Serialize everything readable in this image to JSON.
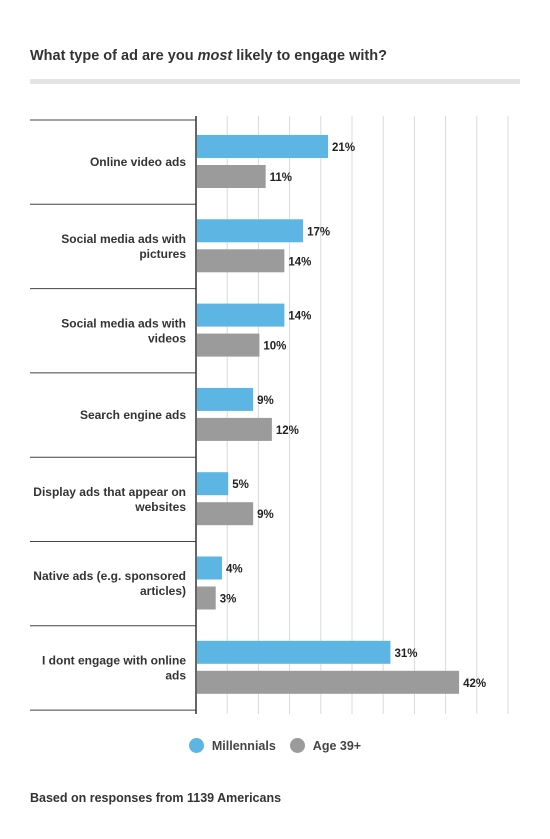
{
  "title": {
    "before": "What type of ad are you ",
    "emphasis": "most",
    "after": " likely to engage with?"
  },
  "footnote": "Based on responses from 1139 Americans",
  "colors": {
    "millennials": "#5cb5e3",
    "age39": "#9b9b9b"
  },
  "chart_data": {
    "type": "bar",
    "orientation": "horizontal",
    "categories": [
      [
        "Online video ads"
      ],
      [
        "Social media ads with",
        "pictures"
      ],
      [
        "Social media ads with",
        "videos"
      ],
      [
        "Search engine ads"
      ],
      [
        "Display ads that appear on",
        "websites"
      ],
      [
        "Native ads (e.g. sponsored",
        "articles)"
      ],
      [
        "I dont engage with online",
        "ads"
      ]
    ],
    "series": [
      {
        "name": "Millennials",
        "values": [
          21,
          17,
          14,
          9,
          5,
          4,
          31
        ]
      },
      {
        "name": "Age 39+",
        "values": [
          11,
          14,
          10,
          12,
          9,
          3,
          42
        ]
      }
    ],
    "value_suffix": "%",
    "xlim": [
      0,
      50
    ],
    "grid": true,
    "legend": "bottom"
  }
}
